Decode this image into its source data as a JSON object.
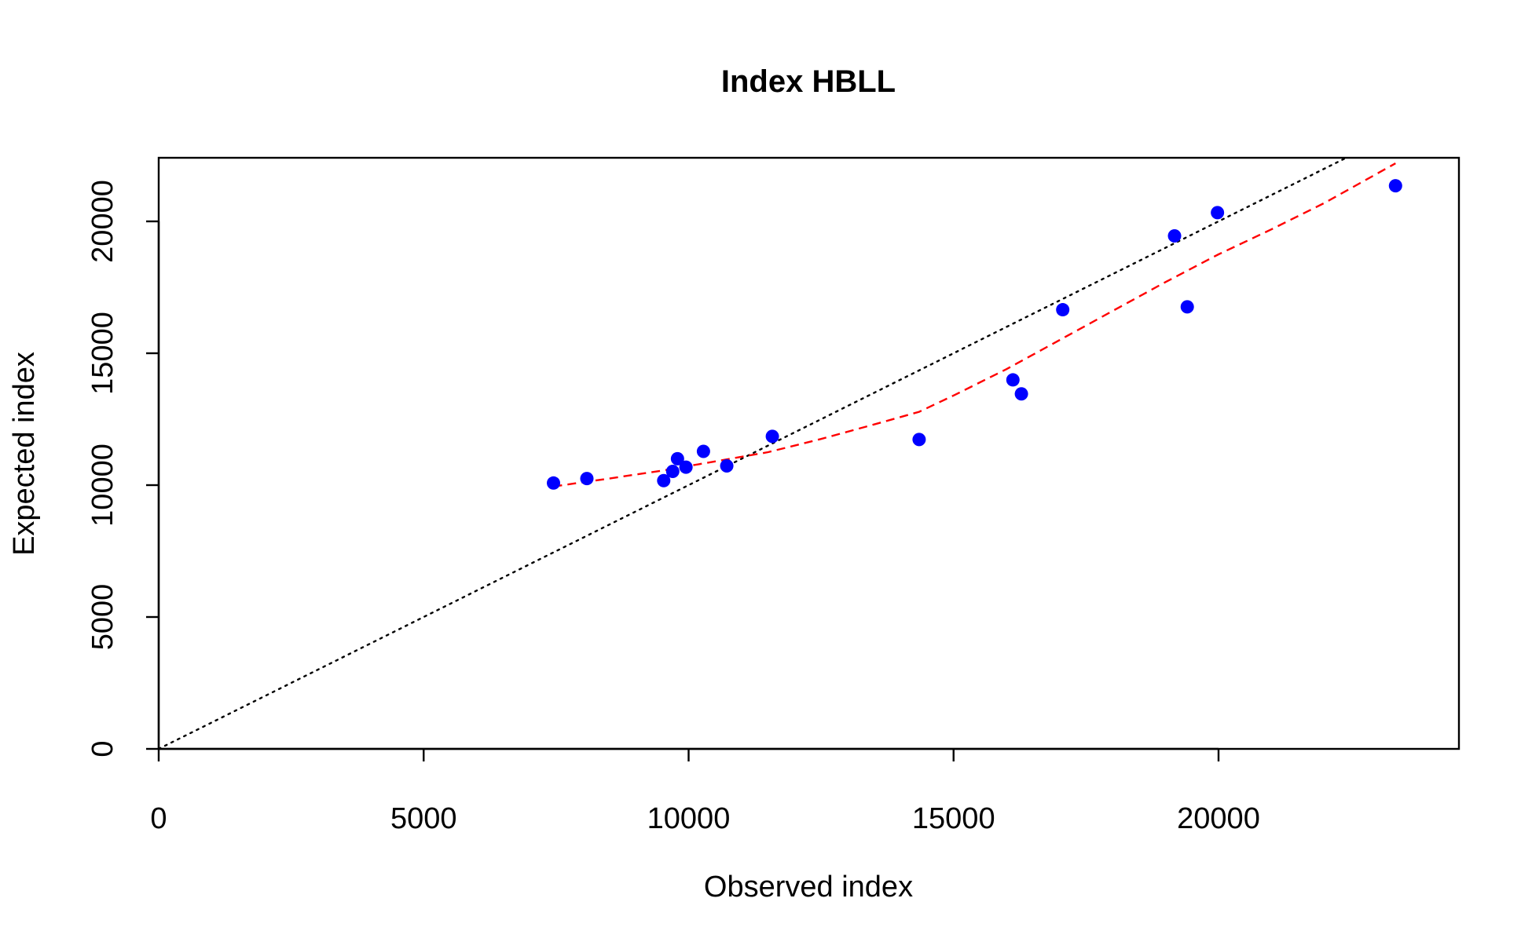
{
  "chart_data": {
    "type": "scatter",
    "title": "Index HBLL",
    "xlabel": "Observed index",
    "ylabel": "Expected index",
    "xlim": [
      0,
      24500
    ],
    "ylim": [
      0,
      22500
    ],
    "x_ticks": [
      0,
      5000,
      10000,
      15000,
      20000
    ],
    "y_ticks": [
      0,
      5000,
      10000,
      15000,
      20000
    ],
    "x_tick_labels": [
      "0",
      "5000",
      "10000",
      "15000",
      "20000"
    ],
    "y_tick_labels": [
      "0",
      "5000",
      "10000",
      "15000",
      "20000"
    ],
    "grid": false,
    "legend": "none",
    "colors": {
      "points": "#0000ff",
      "smooth_line": "#ff0000",
      "reference_line": "#000000",
      "axes": "#000000"
    },
    "points": [
      {
        "x": 7450,
        "y": 10080
      },
      {
        "x": 8080,
        "y": 10250
      },
      {
        "x": 9530,
        "y": 10170
      },
      {
        "x": 9700,
        "y": 10520
      },
      {
        "x": 9790,
        "y": 11000
      },
      {
        "x": 9950,
        "y": 10680
      },
      {
        "x": 10280,
        "y": 11280
      },
      {
        "x": 10720,
        "y": 10730
      },
      {
        "x": 11580,
        "y": 11850
      },
      {
        "x": 14350,
        "y": 11730
      },
      {
        "x": 16120,
        "y": 13990
      },
      {
        "x": 16280,
        "y": 13460
      },
      {
        "x": 17060,
        "y": 16650
      },
      {
        "x": 19170,
        "y": 19450
      },
      {
        "x": 19410,
        "y": 16760
      },
      {
        "x": 19980,
        "y": 20330
      },
      {
        "x": 23340,
        "y": 21350
      }
    ],
    "smooth_line": [
      {
        "x": 7450,
        "y": 9950
      },
      {
        "x": 8500,
        "y": 10250
      },
      {
        "x": 9500,
        "y": 10550
      },
      {
        "x": 10500,
        "y": 10900
      },
      {
        "x": 11500,
        "y": 11250
      },
      {
        "x": 12500,
        "y": 11750
      },
      {
        "x": 13500,
        "y": 12300
      },
      {
        "x": 14350,
        "y": 12780
      },
      {
        "x": 15000,
        "y": 13400
      },
      {
        "x": 16000,
        "y": 14400
      },
      {
        "x": 17000,
        "y": 15500
      },
      {
        "x": 18000,
        "y": 16600
      },
      {
        "x": 19000,
        "y": 17700
      },
      {
        "x": 20000,
        "y": 18750
      },
      {
        "x": 21000,
        "y": 19700
      },
      {
        "x": 22000,
        "y": 20700
      },
      {
        "x": 23340,
        "y": 22200
      }
    ],
    "reference_line": {
      "slope": 1,
      "intercept": 0
    }
  }
}
